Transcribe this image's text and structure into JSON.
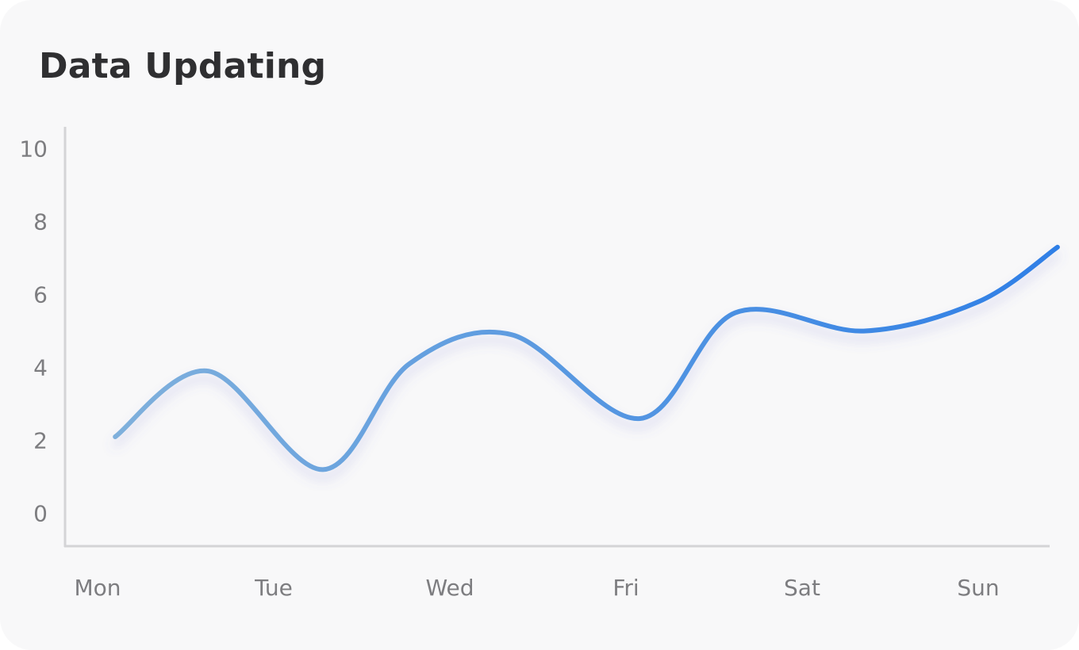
{
  "card": {
    "title": "Data Updating"
  },
  "colors": {
    "card_background": "#f8f8f9",
    "title": "#2f2f31",
    "axis": "#d4d4d6",
    "tick_label": "#7d7d80",
    "line_start": "#7fb0dc",
    "line_end": "#2f7fe6",
    "line_shadow": "#6a6fd0"
  },
  "chart_data": {
    "type": "line",
    "title": "Data Updating",
    "xlabel": "",
    "ylabel": "",
    "categories": [
      "Mon",
      "Tue",
      "Wed",
      "Fri",
      "Sat",
      "Sun"
    ],
    "y_ticks": [
      0,
      2,
      4,
      6,
      8,
      10
    ],
    "ylim": [
      -0.9,
      10.6
    ],
    "x": [
      0.1,
      0.63,
      1.28,
      1.77,
      2.35,
      3.08,
      3.62,
      4.35,
      5.0,
      5.45
    ],
    "values": [
      2.1,
      3.9,
      1.2,
      4.1,
      4.9,
      2.6,
      5.5,
      5.0,
      5.8,
      7.3
    ],
    "smooth": true,
    "grid": false,
    "legend": "none",
    "line_gradient": true
  }
}
